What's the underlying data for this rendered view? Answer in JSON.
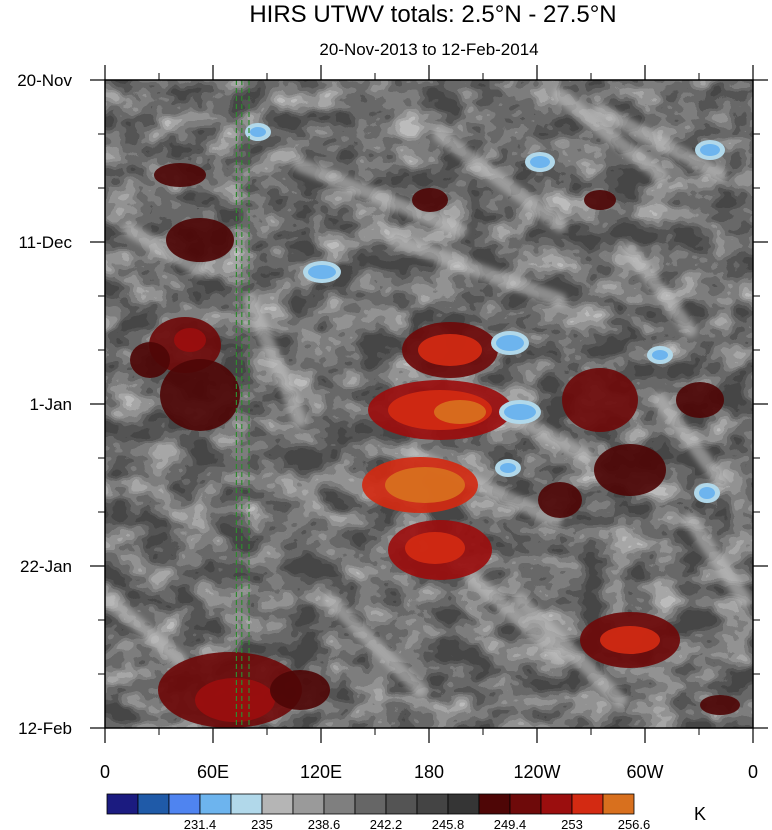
{
  "chart_data": {
    "type": "heatmap",
    "title": "HIRS UTWV totals: 2.5°N - 27.5°N",
    "subtitle": "20-Nov-2013 to 12-Feb-2014",
    "x_axis": {
      "ticks": [
        "0",
        "60E",
        "120E",
        "180",
        "120W",
        "60W",
        "0"
      ],
      "range": [
        0,
        360
      ],
      "unit": "degrees longitude"
    },
    "y_axis": {
      "ticks": [
        "20-Nov",
        "11-Dec",
        "1-Jan",
        "22-Jan",
        "12-Feb"
      ],
      "range": [
        "2013-11-20",
        "2014-02-12"
      ],
      "reversed": true
    },
    "reference_lines": {
      "style": "dashed",
      "color": "#2e8b2e",
      "longitudes": [
        73,
        76,
        80
      ]
    },
    "colorbar": {
      "unit": "K",
      "labels": [
        "231.4",
        "235",
        "238.6",
        "242.2",
        "245.8",
        "249.4",
        "253",
        "256.6"
      ],
      "colors": [
        "#1b1b80",
        "#1f5aa8",
        "#4f84f0",
        "#6db4ee",
        "#b1d8ea",
        "#b5b5b5",
        "#9a9a9a",
        "#7f7f7f",
        "#666666",
        "#545454",
        "#444444",
        "#353535",
        "#4e0606",
        "#6e0a0a",
        "#9b0e0e",
        "#d32a12",
        "#d8701e"
      ]
    }
  }
}
